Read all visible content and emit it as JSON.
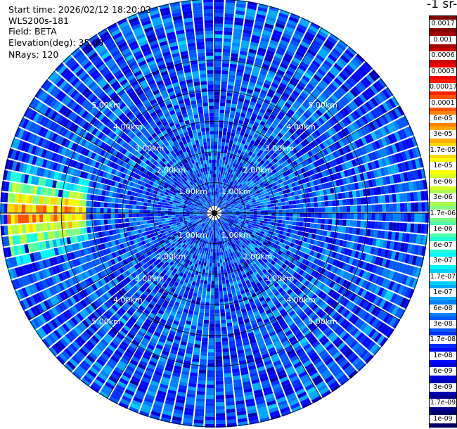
{
  "info": {
    "start_time": "Start time: 2026/02/12 18:20:02",
    "instrument": "WLS200s-181",
    "field": "Field: BETA",
    "elevation": "Elevation(deg): 35.00",
    "nrays": "NRays: 120"
  },
  "colorbar": {
    "title": "-1 sr-",
    "labels": [
      "0.0017",
      "0.001",
      "0.0006",
      "0.0003",
      "0.00017",
      "0.0001",
      "6e-05",
      "3e-05",
      "1.7e-05",
      "1e-05",
      "6e-06",
      "3e-06",
      "1.7e-06",
      "1e-06",
      "6e-07",
      "3e-07",
      "1.7e-07",
      "1e-07",
      "6e-08",
      "3e-08",
      "1.7e-08",
      "1e-08",
      "6e-09",
      "3e-09",
      "1.7e-09",
      "1e-09"
    ],
    "colors": [
      "#800000",
      "#a30000",
      "#c80000",
      "#ee0000",
      "#ff2000",
      "#ff5000",
      "#ff8000",
      "#ffae00",
      "#ffd800",
      "#ffff00",
      "#d8ff20",
      "#aaff50",
      "#80ff80",
      "#50ffaa",
      "#20ffd8",
      "#00f8ff",
      "#00d0ff",
      "#00a8ff",
      "#0080ff",
      "#0058ff",
      "#0030ff",
      "#0008ff",
      "#0000d8",
      "#0000b0",
      "#000088",
      "#00006a"
    ]
  },
  "chart_data": {
    "type": "heatmap",
    "projection": "polar PPI",
    "field": "BETA",
    "elevation_deg": 35.0,
    "n_rays": 120,
    "range_ring_labels": [
      "1.00km",
      "2.00km",
      "3.00km",
      "4.00km",
      "5.00km"
    ],
    "range_rings_km": [
      1,
      2,
      3,
      4,
      5
    ],
    "max_range_km": 7.0,
    "azimuth_spokes_deg": [
      0,
      30,
      60,
      90,
      120,
      150,
      180,
      210,
      240,
      270,
      300,
      330
    ],
    "scale": "log",
    "value_range": [
      1e-09,
      0.0017
    ],
    "typical_value": 3e-08,
    "features": [
      {
        "description": "high backscatter region",
        "azimuth_deg": [
          255,
          285
        ],
        "range_km": [
          4.2,
          6.8
        ],
        "peak_value": 0.0003
      },
      {
        "description": "moderate backscatter arc",
        "azimuth_deg": [
          20,
          60
        ],
        "range_km": [
          3.5,
          5.5
        ],
        "peak_value": 1e-07
      }
    ]
  }
}
